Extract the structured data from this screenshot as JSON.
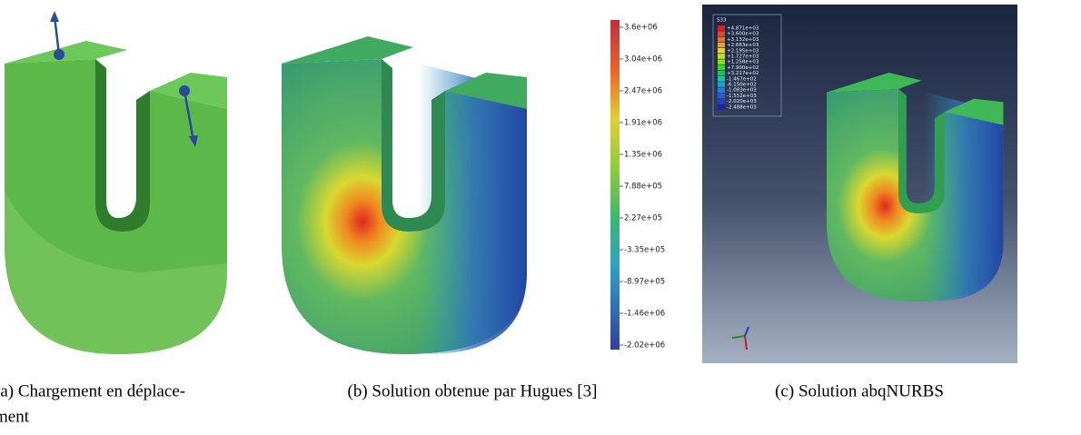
{
  "panels": [
    {
      "caption": [
        "(a) Chargement en déplace-",
        "ment"
      ]
    },
    {
      "caption": [
        "(b) Solution obtenue par Hugues [3]"
      ],
      "colorbar": [
        "3.6e+06",
        "3.04e+06",
        "2.47e+06",
        "1.91e+06",
        "1.35e+06",
        "7.88e+05",
        "2.27e+05",
        "-3.35e+05",
        "-8.97e+05",
        "-1.46e+06",
        "-2.02e+06"
      ]
    },
    {
      "caption": [
        "(c) Solution abqNURBS"
      ],
      "legend_title": "S33",
      "legend": [
        "+4.871e+03",
        "+3.600e+03",
        "+3.132e+03",
        "+2.663e+03",
        "+2.195e+03",
        "+1.727e+03",
        "+1.258e+03",
        "+7.900e+02",
        "+3.217e+02",
        "-1.467e+02",
        "-6.150e+02",
        "-1.083e+03",
        "-1.552e+03",
        "-2.020e+03",
        "-2.488e+03"
      ]
    }
  ]
}
